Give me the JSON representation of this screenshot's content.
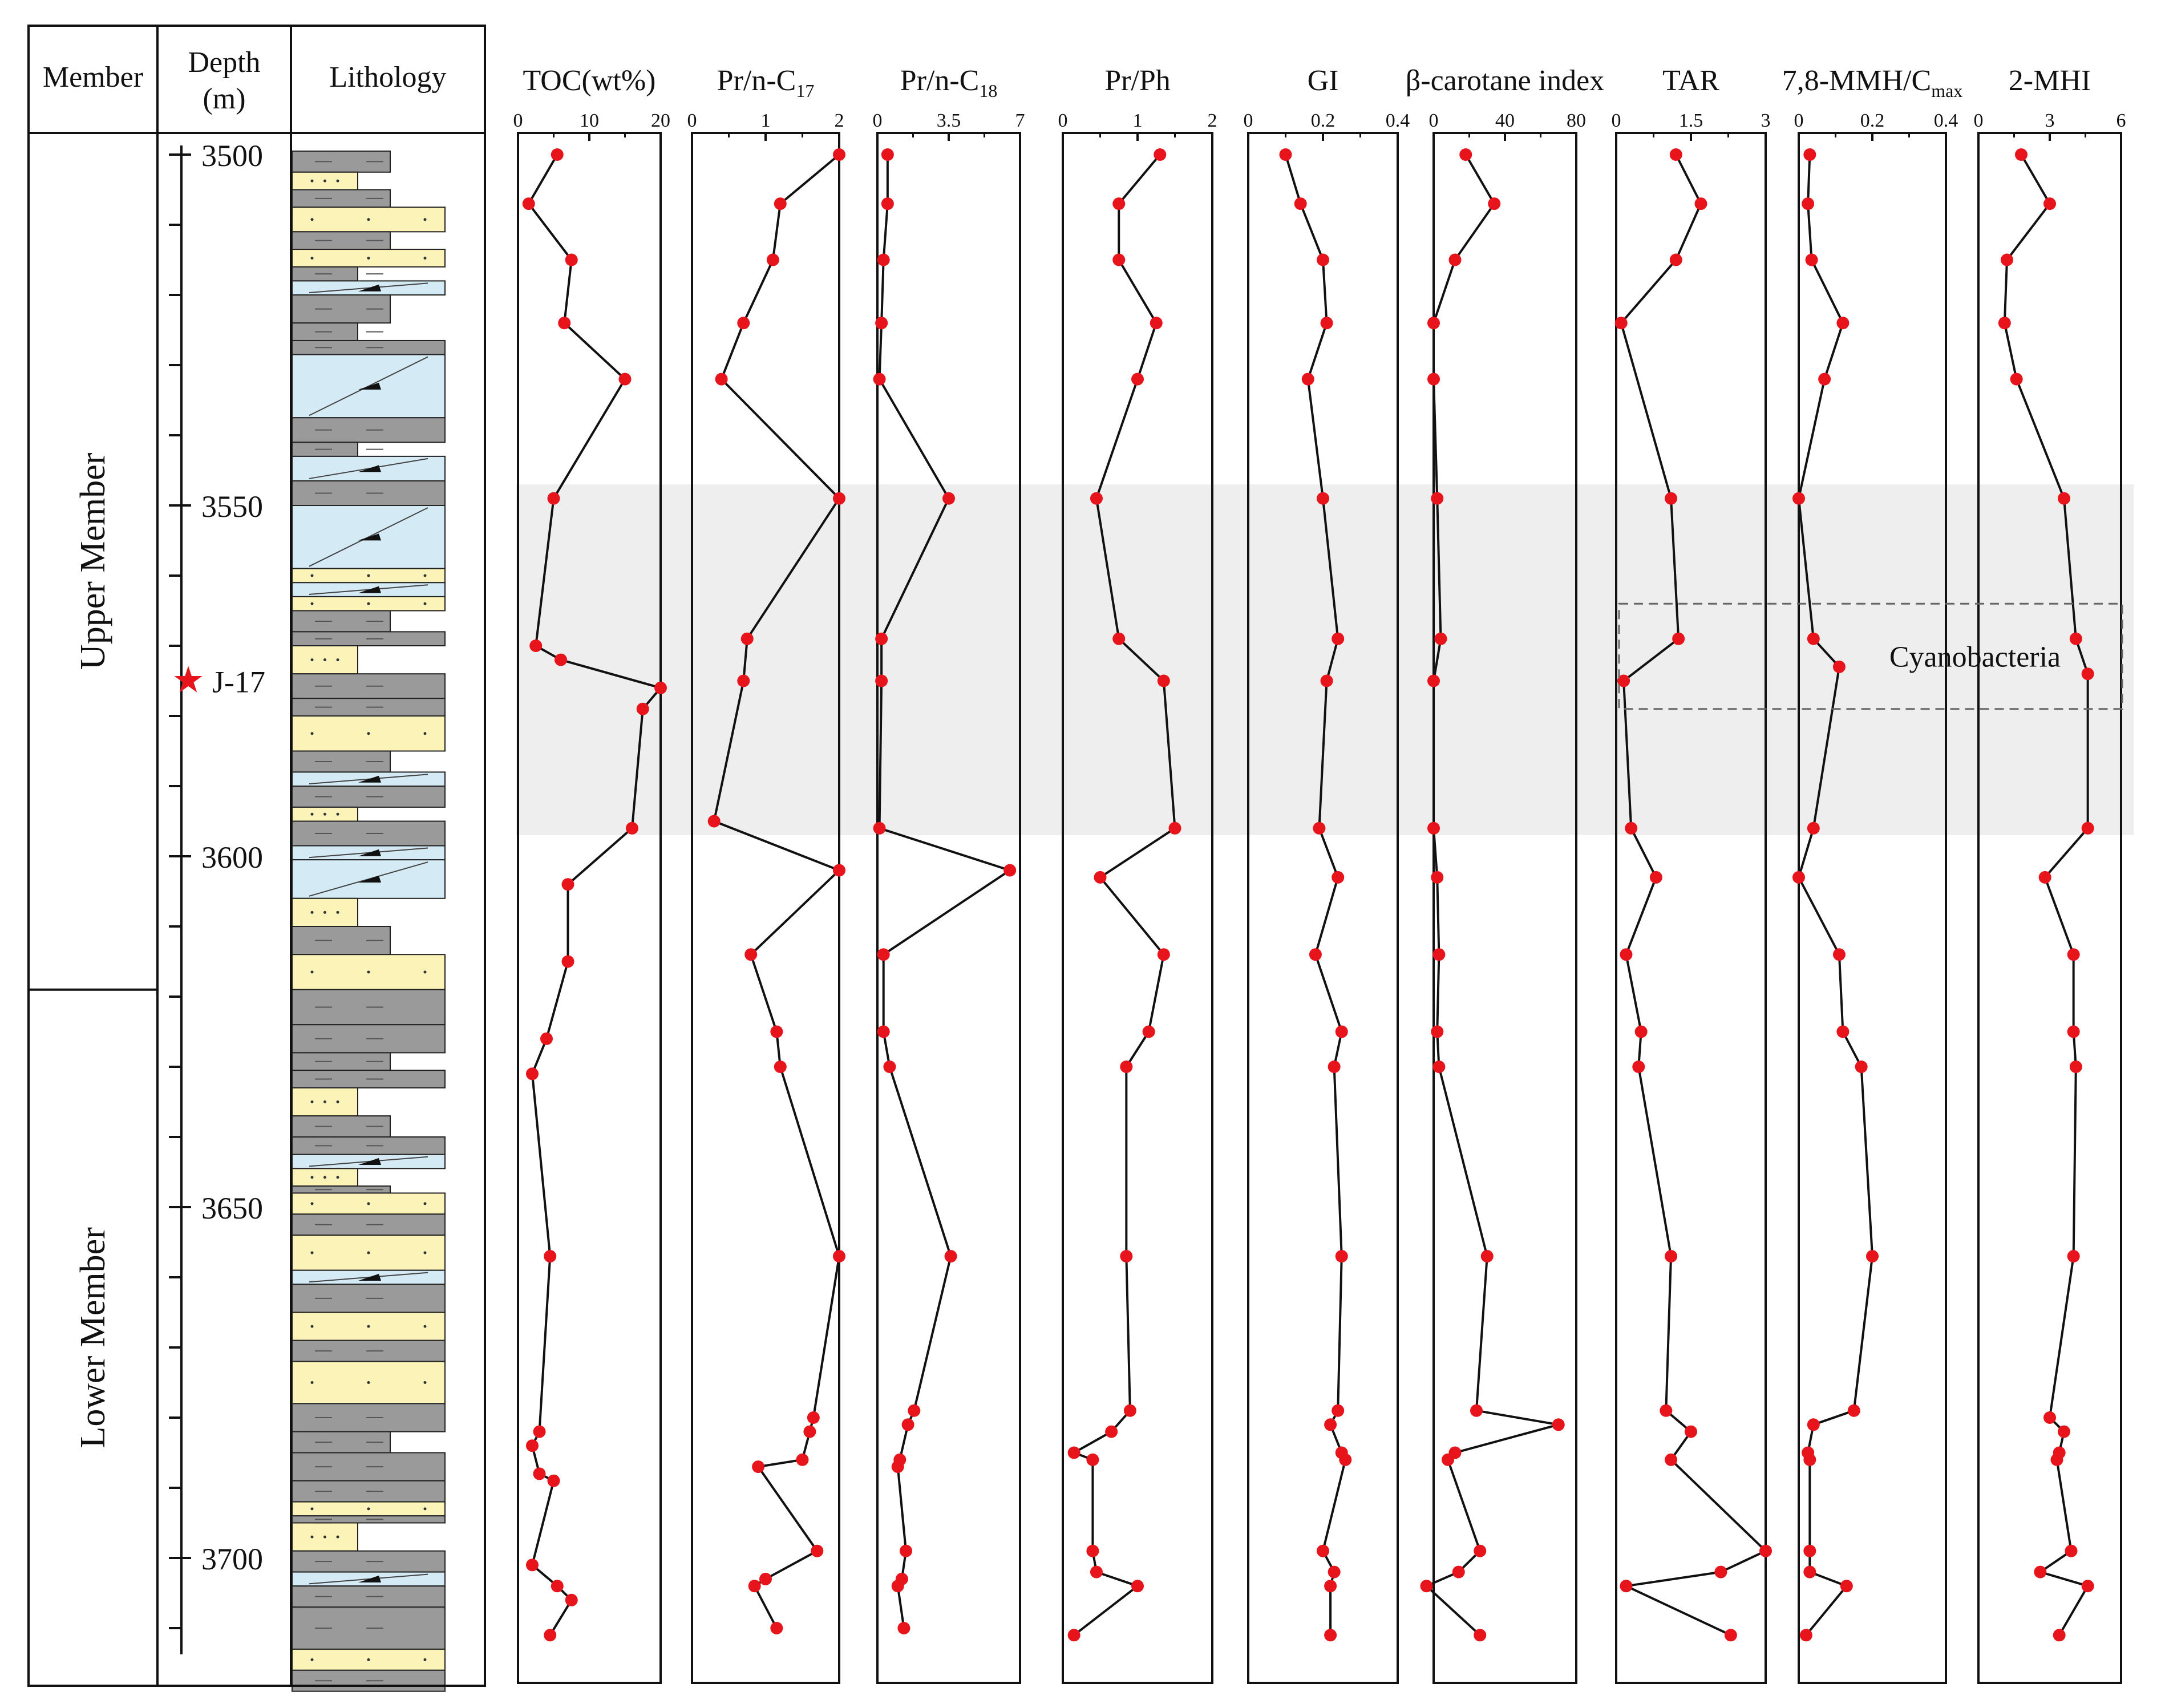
{
  "columns": {
    "member": "Member",
    "depth_line1": "Depth",
    "depth_line2": "(m)",
    "lithology": "Lithology"
  },
  "members": {
    "upper": "Upper Member",
    "lower": "Lower Member"
  },
  "sample_marker": {
    "star": "★",
    "label": "J-17",
    "depth": 3575
  },
  "depth_axis": {
    "min": 3497,
    "max": 3720,
    "ticks": [
      "3500",
      "3550",
      "3600",
      "3650",
      "3700"
    ],
    "member_boundary": 3619
  },
  "highlight_band": {
    "from": 3547,
    "to": 3597
  },
  "cyanobacteria_box": {
    "label": "Cyanobacteria",
    "from": 3564,
    "to": 3579
  },
  "colors": {
    "points": "#e8141c",
    "band": "#eeeeee",
    "mudstone": "#9a9a9a",
    "sandstone": "#fbf3b8",
    "carbonate": "#d4eaf5"
  },
  "chart_data": {
    "type": "line",
    "y_variable": "Depth (m)",
    "panels": [
      {
        "id": "toc",
        "title": "TOC(wt%)",
        "xlim": [
          0,
          20
        ],
        "ticks": [
          "0",
          "10",
          "20"
        ],
        "points": [
          [
            5.5,
            3500
          ],
          [
            1.5,
            3507
          ],
          [
            7.5,
            3515
          ],
          [
            6.5,
            3524
          ],
          [
            15,
            3532
          ],
          [
            5,
            3549
          ],
          [
            2.5,
            3570
          ],
          [
            6,
            3572
          ],
          [
            20,
            3576
          ],
          [
            17.5,
            3579
          ],
          [
            16,
            3596
          ],
          [
            7,
            3604
          ],
          [
            7,
            3615
          ],
          [
            4,
            3626
          ],
          [
            2,
            3631
          ],
          [
            4.5,
            3657
          ],
          [
            3,
            3682
          ],
          [
            2,
            3684
          ],
          [
            3,
            3688
          ],
          [
            5,
            3689
          ],
          [
            2,
            3701
          ],
          [
            5.5,
            3704
          ],
          [
            7.5,
            3706
          ],
          [
            4.5,
            3711
          ]
        ]
      },
      {
        "id": "pr_c17",
        "title": "Pr/n-C",
        "title_sub": "17",
        "xlim": [
          0,
          2
        ],
        "ticks": [
          "0",
          "1",
          "2"
        ],
        "points": [
          [
            2,
            3500
          ],
          [
            1.2,
            3507
          ],
          [
            1.1,
            3515
          ],
          [
            0.7,
            3524
          ],
          [
            0.4,
            3532
          ],
          [
            2,
            3549
          ],
          [
            0.75,
            3569
          ],
          [
            0.7,
            3575
          ],
          [
            0.3,
            3595
          ],
          [
            2,
            3602
          ],
          [
            0.8,
            3614
          ],
          [
            1.15,
            3625
          ],
          [
            1.2,
            3630
          ],
          [
            2,
            3657
          ],
          [
            1.65,
            3680
          ],
          [
            1.6,
            3682
          ],
          [
            1.5,
            3686
          ],
          [
            0.9,
            3687
          ],
          [
            1.7,
            3699
          ],
          [
            1.0,
            3703
          ],
          [
            0.85,
            3704
          ],
          [
            1.15,
            3710
          ]
        ]
      },
      {
        "id": "pr_c18",
        "title": "Pr/n-C",
        "title_sub": "18",
        "xlim": [
          0,
          7
        ],
        "ticks": [
          "0",
          "3.5",
          "7"
        ],
        "points": [
          [
            0.5,
            3500
          ],
          [
            0.5,
            3507
          ],
          [
            0.3,
            3515
          ],
          [
            0.2,
            3524
          ],
          [
            0.1,
            3532
          ],
          [
            3.5,
            3549
          ],
          [
            0.2,
            3569
          ],
          [
            0.2,
            3575
          ],
          [
            0.1,
            3596
          ],
          [
            6.5,
            3602
          ],
          [
            0.3,
            3614
          ],
          [
            0.3,
            3625
          ],
          [
            0.6,
            3630
          ],
          [
            3.6,
            3657
          ],
          [
            1.8,
            3679
          ],
          [
            1.5,
            3681
          ],
          [
            1.1,
            3686
          ],
          [
            1,
            3687
          ],
          [
            1.4,
            3699
          ],
          [
            1.2,
            3703
          ],
          [
            1,
            3704
          ],
          [
            1.3,
            3710
          ]
        ]
      },
      {
        "id": "pr_ph",
        "title": "Pr/Ph",
        "xlim": [
          0,
          2
        ],
        "ticks": [
          "0",
          "1",
          "2"
        ],
        "points": [
          [
            1.3,
            3500
          ],
          [
            0.75,
            3507
          ],
          [
            0.75,
            3515
          ],
          [
            1.25,
            3524
          ],
          [
            1,
            3532
          ],
          [
            0.45,
            3549
          ],
          [
            0.75,
            3569
          ],
          [
            1.35,
            3575
          ],
          [
            1.5,
            3596
          ],
          [
            0.5,
            3603
          ],
          [
            1.35,
            3614
          ],
          [
            1.15,
            3625
          ],
          [
            0.85,
            3630
          ],
          [
            0.85,
            3657
          ],
          [
            0.9,
            3679
          ],
          [
            0.65,
            3682
          ],
          [
            0.15,
            3685
          ],
          [
            0.4,
            3686
          ],
          [
            0.4,
            3699
          ],
          [
            0.45,
            3702
          ],
          [
            1,
            3704
          ],
          [
            0.15,
            3711
          ]
        ]
      },
      {
        "id": "gi",
        "title": "GI",
        "xlim": [
          0,
          0.4
        ],
        "ticks": [
          "0",
          "0.2",
          "0.4"
        ],
        "points": [
          [
            0.1,
            3500
          ],
          [
            0.14,
            3507
          ],
          [
            0.2,
            3515
          ],
          [
            0.21,
            3524
          ],
          [
            0.16,
            3532
          ],
          [
            0.2,
            3549
          ],
          [
            0.24,
            3569
          ],
          [
            0.21,
            3575
          ],
          [
            0.19,
            3596
          ],
          [
            0.24,
            3603
          ],
          [
            0.18,
            3614
          ],
          [
            0.25,
            3625
          ],
          [
            0.23,
            3630
          ],
          [
            0.25,
            3657
          ],
          [
            0.24,
            3679
          ],
          [
            0.22,
            3681
          ],
          [
            0.25,
            3685
          ],
          [
            0.26,
            3686
          ],
          [
            0.2,
            3699
          ],
          [
            0.23,
            3702
          ],
          [
            0.22,
            3704
          ],
          [
            0.22,
            3711
          ]
        ]
      },
      {
        "id": "beta_carotane",
        "title": "β-carotane index",
        "xlim": [
          0,
          80
        ],
        "ticks": [
          "0",
          "40",
          "80"
        ],
        "points": [
          [
            18,
            3500
          ],
          [
            34,
            3507
          ],
          [
            12,
            3515
          ],
          [
            0,
            3524
          ],
          [
            0,
            3532
          ],
          [
            2,
            3549
          ],
          [
            4,
            3569
          ],
          [
            0,
            3575
          ],
          [
            0,
            3596
          ],
          [
            2,
            3603
          ],
          [
            3,
            3614
          ],
          [
            2,
            3625
          ],
          [
            3,
            3630
          ],
          [
            30,
            3657
          ],
          [
            24,
            3679
          ],
          [
            70,
            3681
          ],
          [
            12,
            3685
          ],
          [
            8,
            3686
          ],
          [
            26,
            3699
          ],
          [
            14,
            3702
          ],
          [
            -4,
            3704
          ],
          [
            26,
            3711
          ]
        ]
      },
      {
        "id": "tar",
        "title": "TAR",
        "xlim": [
          0,
          3
        ],
        "ticks": [
          "0",
          "1.5",
          "3"
        ],
        "points": [
          [
            1.2,
            3500
          ],
          [
            1.7,
            3507
          ],
          [
            1.2,
            3515
          ],
          [
            0.1,
            3524
          ],
          [
            1.1,
            3549
          ],
          [
            1.25,
            3569
          ],
          [
            0.15,
            3575
          ],
          [
            0.3,
            3596
          ],
          [
            0.8,
            3603
          ],
          [
            0.2,
            3614
          ],
          [
            0.5,
            3625
          ],
          [
            0.45,
            3630
          ],
          [
            1.1,
            3657
          ],
          [
            1.0,
            3679
          ],
          [
            1.5,
            3682
          ],
          [
            1.1,
            3686
          ],
          [
            3,
            3699
          ],
          [
            2.1,
            3702
          ],
          [
            0.2,
            3704
          ],
          [
            2.3,
            3711
          ]
        ]
      },
      {
        "id": "mmh",
        "title": "7,8-MMH/C",
        "title_sub": "max",
        "xlim": [
          0,
          0.4
        ],
        "ticks": [
          "0",
          "0.2",
          "0.4"
        ],
        "points": [
          [
            0.03,
            3500
          ],
          [
            0.025,
            3507
          ],
          [
            0.035,
            3515
          ],
          [
            0.12,
            3524
          ],
          [
            0.07,
            3532
          ],
          [
            0,
            3549
          ],
          [
            0.04,
            3569
          ],
          [
            0.11,
            3573
          ],
          [
            0.04,
            3596
          ],
          [
            0,
            3603
          ],
          [
            0.11,
            3614
          ],
          [
            0.12,
            3625
          ],
          [
            0.17,
            3630
          ],
          [
            0.2,
            3657
          ],
          [
            0.15,
            3679
          ],
          [
            0.04,
            3681
          ],
          [
            0.025,
            3685
          ],
          [
            0.03,
            3686
          ],
          [
            0.03,
            3699
          ],
          [
            0.03,
            3702
          ],
          [
            0.13,
            3704
          ],
          [
            0.02,
            3711
          ]
        ]
      },
      {
        "id": "mhi",
        "title": "2-MHI",
        "xlim": [
          0,
          6
        ],
        "ticks": [
          "0",
          "3",
          "6"
        ],
        "points": [
          [
            1.8,
            3500
          ],
          [
            3,
            3507
          ],
          [
            1.2,
            3515
          ],
          [
            1.1,
            3524
          ],
          [
            1.6,
            3532
          ],
          [
            3.6,
            3549
          ],
          [
            4.1,
            3569
          ],
          [
            4.6,
            3574
          ],
          [
            4.6,
            3596
          ],
          [
            2.8,
            3603
          ],
          [
            4.0,
            3614
          ],
          [
            4.0,
            3625
          ],
          [
            4.1,
            3630
          ],
          [
            4.0,
            3657
          ],
          [
            3.0,
            3680
          ],
          [
            3.6,
            3682
          ],
          [
            3.4,
            3685
          ],
          [
            3.3,
            3686
          ],
          [
            3.9,
            3699
          ],
          [
            2.6,
            3702
          ],
          [
            4.6,
            3704
          ],
          [
            3.4,
            3711
          ]
        ]
      }
    ]
  }
}
